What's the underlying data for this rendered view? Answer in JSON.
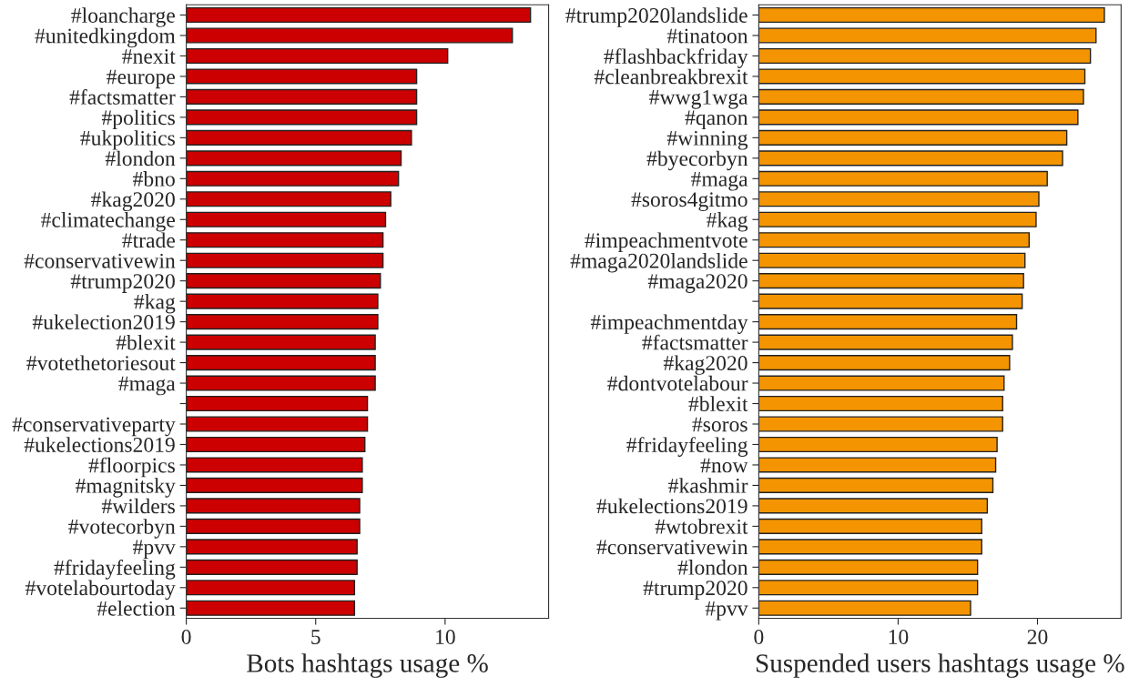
{
  "chart_data": [
    {
      "type": "bar",
      "orientation": "horizontal",
      "xlabel": "Bots hashtags usage %",
      "color": "#cc0000",
      "categories": [
        "#loancharge",
        "#unitedkingdom",
        "#nexit",
        "#europe",
        "#factsmatter",
        "#politics",
        "#ukpolitics",
        "#london",
        "#bno",
        "#kag2020",
        "#climatechange",
        "#trade",
        "#conservativewin",
        "#trump2020",
        "#kag",
        "#ukelection2019",
        "#blexit",
        "#votethetoriesout",
        "#maga",
        null,
        "#conservativeparty",
        "#ukelections2019",
        "#floorpics",
        "#magnitsky",
        "#wilders",
        "#votecorbyn",
        "#pvv",
        "#fridayfeeling",
        "#votelabourtoday",
        "#election"
      ],
      "values": [
        13.3,
        12.6,
        10.1,
        8.9,
        8.9,
        8.9,
        8.7,
        8.3,
        8.2,
        7.9,
        7.7,
        7.6,
        7.6,
        7.5,
        7.4,
        7.4,
        7.3,
        7.3,
        7.3,
        7.0,
        7.0,
        6.9,
        6.8,
        6.8,
        6.7,
        6.7,
        6.6,
        6.6,
        6.5,
        6.5
      ],
      "xlim": [
        0,
        14
      ],
      "xticks": [
        0,
        5,
        10
      ],
      "grid": false
    },
    {
      "type": "bar",
      "orientation": "horizontal",
      "xlabel": "Suspended users hashtags usage %",
      "color": "#f39400",
      "categories": [
        "#trump2020landslide",
        "#tinatoon",
        "#flashbackfriday",
        "#cleanbreakbrexit",
        "#wwg1wga",
        "#qanon",
        "#winning",
        "#byecorbyn",
        "#maga",
        "#soros4gitmo",
        "#kag",
        "#impeachmentvote",
        "#maga2020landslide",
        "#maga2020",
        null,
        "#impeachmentday",
        "#factsmatter",
        "#kag2020",
        "#dontvotelabour",
        "#blexit",
        "#soros",
        "#fridayfeeling",
        "#now",
        "#kashmir",
        "#ukelections2019",
        "#wtobrexit",
        "#conservativewin",
        "#london",
        "#trump2020",
        "#pvv"
      ],
      "values": [
        24.8,
        24.2,
        23.8,
        23.4,
        23.3,
        22.9,
        22.1,
        21.8,
        20.7,
        20.1,
        19.9,
        19.4,
        19.1,
        19.0,
        18.9,
        18.5,
        18.2,
        18.0,
        17.6,
        17.5,
        17.5,
        17.1,
        17.0,
        16.8,
        16.4,
        16.0,
        16.0,
        15.7,
        15.7,
        15.2
      ],
      "xlim": [
        0,
        26
      ],
      "xticks": [
        0,
        10,
        20
      ],
      "grid": false
    }
  ]
}
